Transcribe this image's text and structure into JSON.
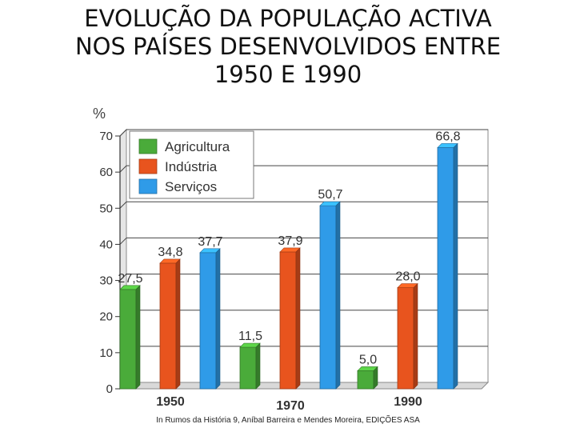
{
  "page": {
    "title_lines": [
      "EVOLUÇÃO DA POPULAÇÃO ACTIVA",
      "NOS PAÍSES DESENVOLVIDOS ENTRE",
      "1950 E 1990"
    ],
    "credit": "In Rumos da História 9, Aníbal Barreira e Mendes Moreira, EDIÇÕES ASA"
  },
  "chart_data": {
    "type": "bar",
    "title": "EVOLUÇÃO DA POPULAÇÃO ACTIVA NOS PAÍSES DESENVOLVIDOS ENTRE 1950 E 1990",
    "ylabel": "%",
    "xlabel": "",
    "categories": [
      "1950",
      "1970",
      "1990"
    ],
    "series": [
      {
        "name": "Agricultura",
        "values": [
          27.5,
          11.5,
          5.0
        ],
        "labels": [
          "27,5",
          "11,5",
          "5,0"
        ],
        "color": "#4aab3a"
      },
      {
        "name": "Indústria",
        "values": [
          34.8,
          37.9,
          28.0
        ],
        "labels": [
          "34,8",
          "37,9",
          "28,0"
        ],
        "color": "#e8541e"
      },
      {
        "name": "Serviços",
        "values": [
          37.7,
          50.7,
          66.8
        ],
        "labels": [
          "37,7",
          "50,7",
          "66,8"
        ],
        "color": "#2f9be8"
      }
    ],
    "ylim": [
      0,
      70
    ],
    "yticks": [
      0,
      10,
      20,
      30,
      40,
      50,
      60,
      70
    ],
    "grid": true,
    "legend": "top-left"
  }
}
